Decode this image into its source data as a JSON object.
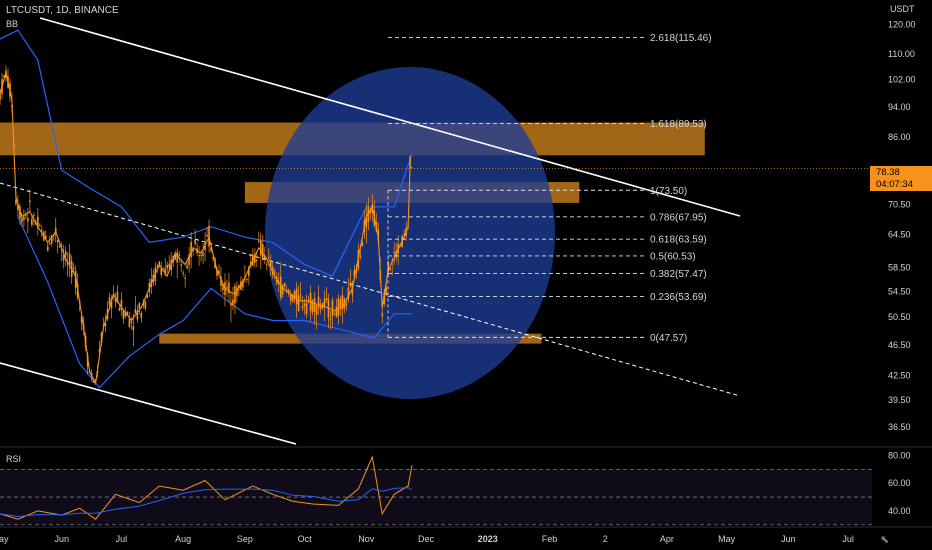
{
  "header": {
    "symbol": "LTCUSDT, 1D, BINANCE",
    "indicator": "BB"
  },
  "rsi_label": "RSI",
  "price_axis": {
    "unit": "USDT",
    "last_price": "78.38",
    "countdown": "04:07:34"
  },
  "icons": {
    "cursor": "cursor-arrow-icon"
  },
  "colors": {
    "background": "#000000",
    "candle": "#f7931a",
    "bollinger": "#2962ff",
    "zone": "#b8741a",
    "circle": "#1e3c96",
    "channel": "#ffffff",
    "rsi_line": "#f7931a",
    "rsi_ma": "#2962ff"
  },
  "chart_data": {
    "type": "line",
    "title": "",
    "xlabel": "",
    "ylabel": "USDT",
    "scale": "log",
    "ylim": [
      34.5,
      126
    ],
    "x_ticks": [
      "May",
      "Jun",
      "Jul",
      "Aug",
      "Sep",
      "Oct",
      "Nov",
      "Dec",
      "2023",
      "Feb",
      "2",
      "Apr",
      "May",
      "Jun",
      "Jul"
    ],
    "x_tick_dates": [
      "2022-05-01",
      "2022-06-01",
      "2022-07-01",
      "2022-08-01",
      "2022-09-01",
      "2022-10-01",
      "2022-11-01",
      "2022-12-01",
      "2023-01-01",
      "2023-02-01",
      "2023-03-01",
      "2023-04-01",
      "2023-05-01",
      "2023-06-01",
      "2023-07-01"
    ],
    "x_range": [
      "2022-05-01",
      "2023-07-13"
    ],
    "y_ticks": [
      "120.00",
      "110.00",
      "102.00",
      "94.00",
      "86.00",
      "70.50",
      "64.50",
      "58.50",
      "54.50",
      "50.50",
      "46.50",
      "42.50",
      "39.50",
      "36.50"
    ],
    "last_date": "2022-11-24",
    "series": [
      {
        "kind": "candles",
        "points": [
          [
            "2022-05-01",
            98
          ],
          [
            "2022-05-04",
            104
          ],
          [
            "2022-05-07",
            96
          ],
          [
            "2022-05-09",
            72
          ],
          [
            "2022-05-12",
            68
          ],
          [
            "2022-05-16",
            69
          ],
          [
            "2022-05-20",
            66
          ],
          [
            "2022-05-25",
            63
          ],
          [
            "2022-05-29",
            65
          ],
          [
            "2022-06-03",
            60
          ],
          [
            "2022-06-08",
            57
          ],
          [
            "2022-06-12",
            49
          ],
          [
            "2022-06-15",
            43
          ],
          [
            "2022-06-18",
            41.5
          ],
          [
            "2022-06-22",
            49
          ],
          [
            "2022-06-27",
            54
          ],
          [
            "2022-07-01",
            52
          ],
          [
            "2022-07-06",
            50
          ],
          [
            "2022-07-11",
            52
          ],
          [
            "2022-07-15",
            55
          ],
          [
            "2022-07-20",
            59
          ],
          [
            "2022-07-24",
            57
          ],
          [
            "2022-07-28",
            61
          ],
          [
            "2022-08-02",
            59
          ],
          [
            "2022-08-06",
            62
          ],
          [
            "2022-08-10",
            61
          ],
          [
            "2022-08-14",
            64
          ],
          [
            "2022-08-18",
            58
          ],
          [
            "2022-08-22",
            55
          ],
          [
            "2022-08-27",
            54
          ],
          [
            "2022-08-31",
            56
          ],
          [
            "2022-09-04",
            59
          ],
          [
            "2022-09-08",
            62
          ],
          [
            "2022-09-12",
            60
          ],
          [
            "2022-09-16",
            57
          ],
          [
            "2022-09-20",
            55
          ],
          [
            "2022-09-24",
            54
          ],
          [
            "2022-09-28",
            53
          ],
          [
            "2022-10-02",
            53
          ],
          [
            "2022-10-07",
            52.5
          ],
          [
            "2022-10-12",
            52
          ],
          [
            "2022-10-16",
            51.5
          ],
          [
            "2022-10-20",
            52
          ],
          [
            "2022-10-25",
            55
          ],
          [
            "2022-10-29",
            62
          ],
          [
            "2022-11-01",
            68
          ],
          [
            "2022-11-04",
            70
          ],
          [
            "2022-11-07",
            64
          ],
          [
            "2022-11-09",
            52
          ],
          [
            "2022-11-12",
            58
          ],
          [
            "2022-11-16",
            61
          ],
          [
            "2022-11-20",
            64
          ],
          [
            "2022-11-22",
            66
          ],
          [
            "2022-11-23",
            79
          ],
          [
            "2022-11-24",
            78.38
          ]
        ]
      },
      {
        "name": "BB upper",
        "points": [
          [
            "2022-05-01",
            115
          ],
          [
            "2022-05-10",
            118
          ],
          [
            "2022-05-20",
            108
          ],
          [
            "2022-06-01",
            78
          ],
          [
            "2022-06-15",
            74
          ],
          [
            "2022-07-01",
            70
          ],
          [
            "2022-07-15",
            63
          ],
          [
            "2022-08-01",
            64
          ],
          [
            "2022-08-15",
            66
          ],
          [
            "2022-09-01",
            64
          ],
          [
            "2022-09-15",
            63
          ],
          [
            "2022-10-01",
            59
          ],
          [
            "2022-10-15",
            57
          ],
          [
            "2022-11-01",
            70
          ],
          [
            "2022-11-15",
            70
          ],
          [
            "2022-11-24",
            82
          ]
        ]
      },
      {
        "name": "BB lower",
        "points": [
          [
            "2022-05-10",
            68
          ],
          [
            "2022-05-25",
            56
          ],
          [
            "2022-06-10",
            44
          ],
          [
            "2022-06-20",
            41
          ],
          [
            "2022-07-05",
            45
          ],
          [
            "2022-07-20",
            48
          ],
          [
            "2022-08-01",
            50
          ],
          [
            "2022-08-15",
            55
          ],
          [
            "2022-09-01",
            51
          ],
          [
            "2022-09-15",
            50
          ],
          [
            "2022-10-01",
            50
          ],
          [
            "2022-10-15",
            49
          ],
          [
            "2022-11-05",
            47.5
          ],
          [
            "2022-11-15",
            51
          ],
          [
            "2022-11-24",
            51
          ]
        ]
      }
    ],
    "fib_levels": [
      {
        "ratio": "2.618",
        "value": 115.46,
        "label": "2.618(115.46)"
      },
      {
        "ratio": "1.618",
        "value": 89.53,
        "label": "1.618(89.53)"
      },
      {
        "ratio": "1",
        "value": 73.5,
        "label": "1(73.50)"
      },
      {
        "ratio": "0.786",
        "value": 67.95,
        "label": "0.786(67.95)"
      },
      {
        "ratio": "0.618",
        "value": 63.59,
        "label": "0.618(63.59)"
      },
      {
        "ratio": "0.5",
        "value": 60.53,
        "label": "0.5(60.53)"
      },
      {
        "ratio": "0.382",
        "value": 57.47,
        "label": "0.382(57.47)"
      },
      {
        "ratio": "0.236",
        "value": 53.69,
        "label": "0.236(53.69)"
      },
      {
        "ratio": "0",
        "value": 47.57,
        "label": "0(47.57)"
      }
    ],
    "zones": [
      {
        "from": "2022-05-01",
        "to": "2023-04-20",
        "low": 81.5,
        "high": 89.8
      },
      {
        "from": "2022-09-01",
        "to": "2023-02-16",
        "low": 70.8,
        "high": 75.3
      },
      {
        "from": "2022-07-20",
        "to": "2023-01-28",
        "low": 46.7,
        "high": 48.1
      }
    ],
    "rsi": {
      "ticks": [
        "80.00",
        "60.00",
        "40.00"
      ],
      "bands": [
        70,
        30
      ],
      "ylim": [
        32,
        84
      ],
      "points": [
        [
          "2022-05-01",
          38
        ],
        [
          "2022-05-10",
          34
        ],
        [
          "2022-05-20",
          40
        ],
        [
          "2022-06-01",
          37
        ],
        [
          "2022-06-10",
          42
        ],
        [
          "2022-06-18",
          34
        ],
        [
          "2022-06-28",
          52
        ],
        [
          "2022-07-10",
          46
        ],
        [
          "2022-07-20",
          58
        ],
        [
          "2022-08-01",
          55
        ],
        [
          "2022-08-12",
          62
        ],
        [
          "2022-08-22",
          48
        ],
        [
          "2022-09-05",
          58
        ],
        [
          "2022-09-15",
          52
        ],
        [
          "2022-09-25",
          47
        ],
        [
          "2022-10-05",
          45
        ],
        [
          "2022-10-18",
          44
        ],
        [
          "2022-10-28",
          56
        ],
        [
          "2022-11-04",
          79
        ],
        [
          "2022-11-09",
          38
        ],
        [
          "2022-11-15",
          52
        ],
        [
          "2022-11-22",
          58
        ],
        [
          "2022-11-24",
          73
        ]
      ]
    }
  }
}
